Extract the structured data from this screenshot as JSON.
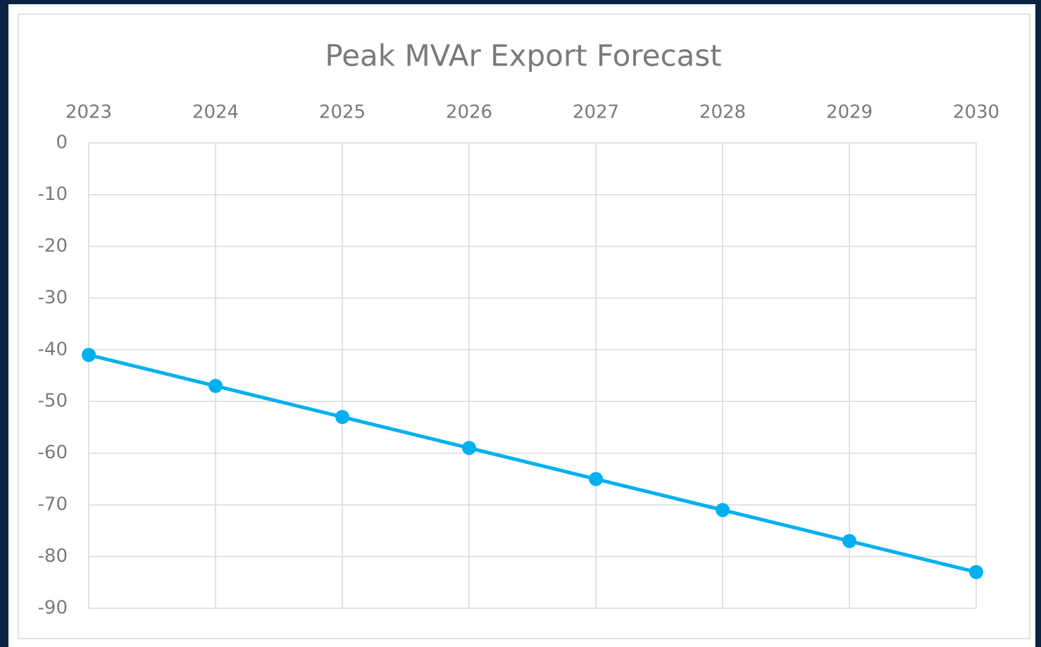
{
  "chart_data": {
    "type": "line",
    "title": "Peak MVAr Export Forecast",
    "categories": [
      "2023",
      "2024",
      "2025",
      "2026",
      "2027",
      "2028",
      "2029",
      "2030"
    ],
    "series": [
      {
        "name": "Peak MVAr Export",
        "color": "#00b0f0",
        "values": [
          -41,
          -47,
          -53,
          -59,
          -65,
          -71,
          -77,
          -83
        ]
      }
    ],
    "ylim": [
      -90,
      0
    ],
    "yticks": [
      0,
      -10,
      -20,
      -30,
      -40,
      -50,
      -60,
      -70,
      -80,
      -90
    ],
    "grid": true
  }
}
